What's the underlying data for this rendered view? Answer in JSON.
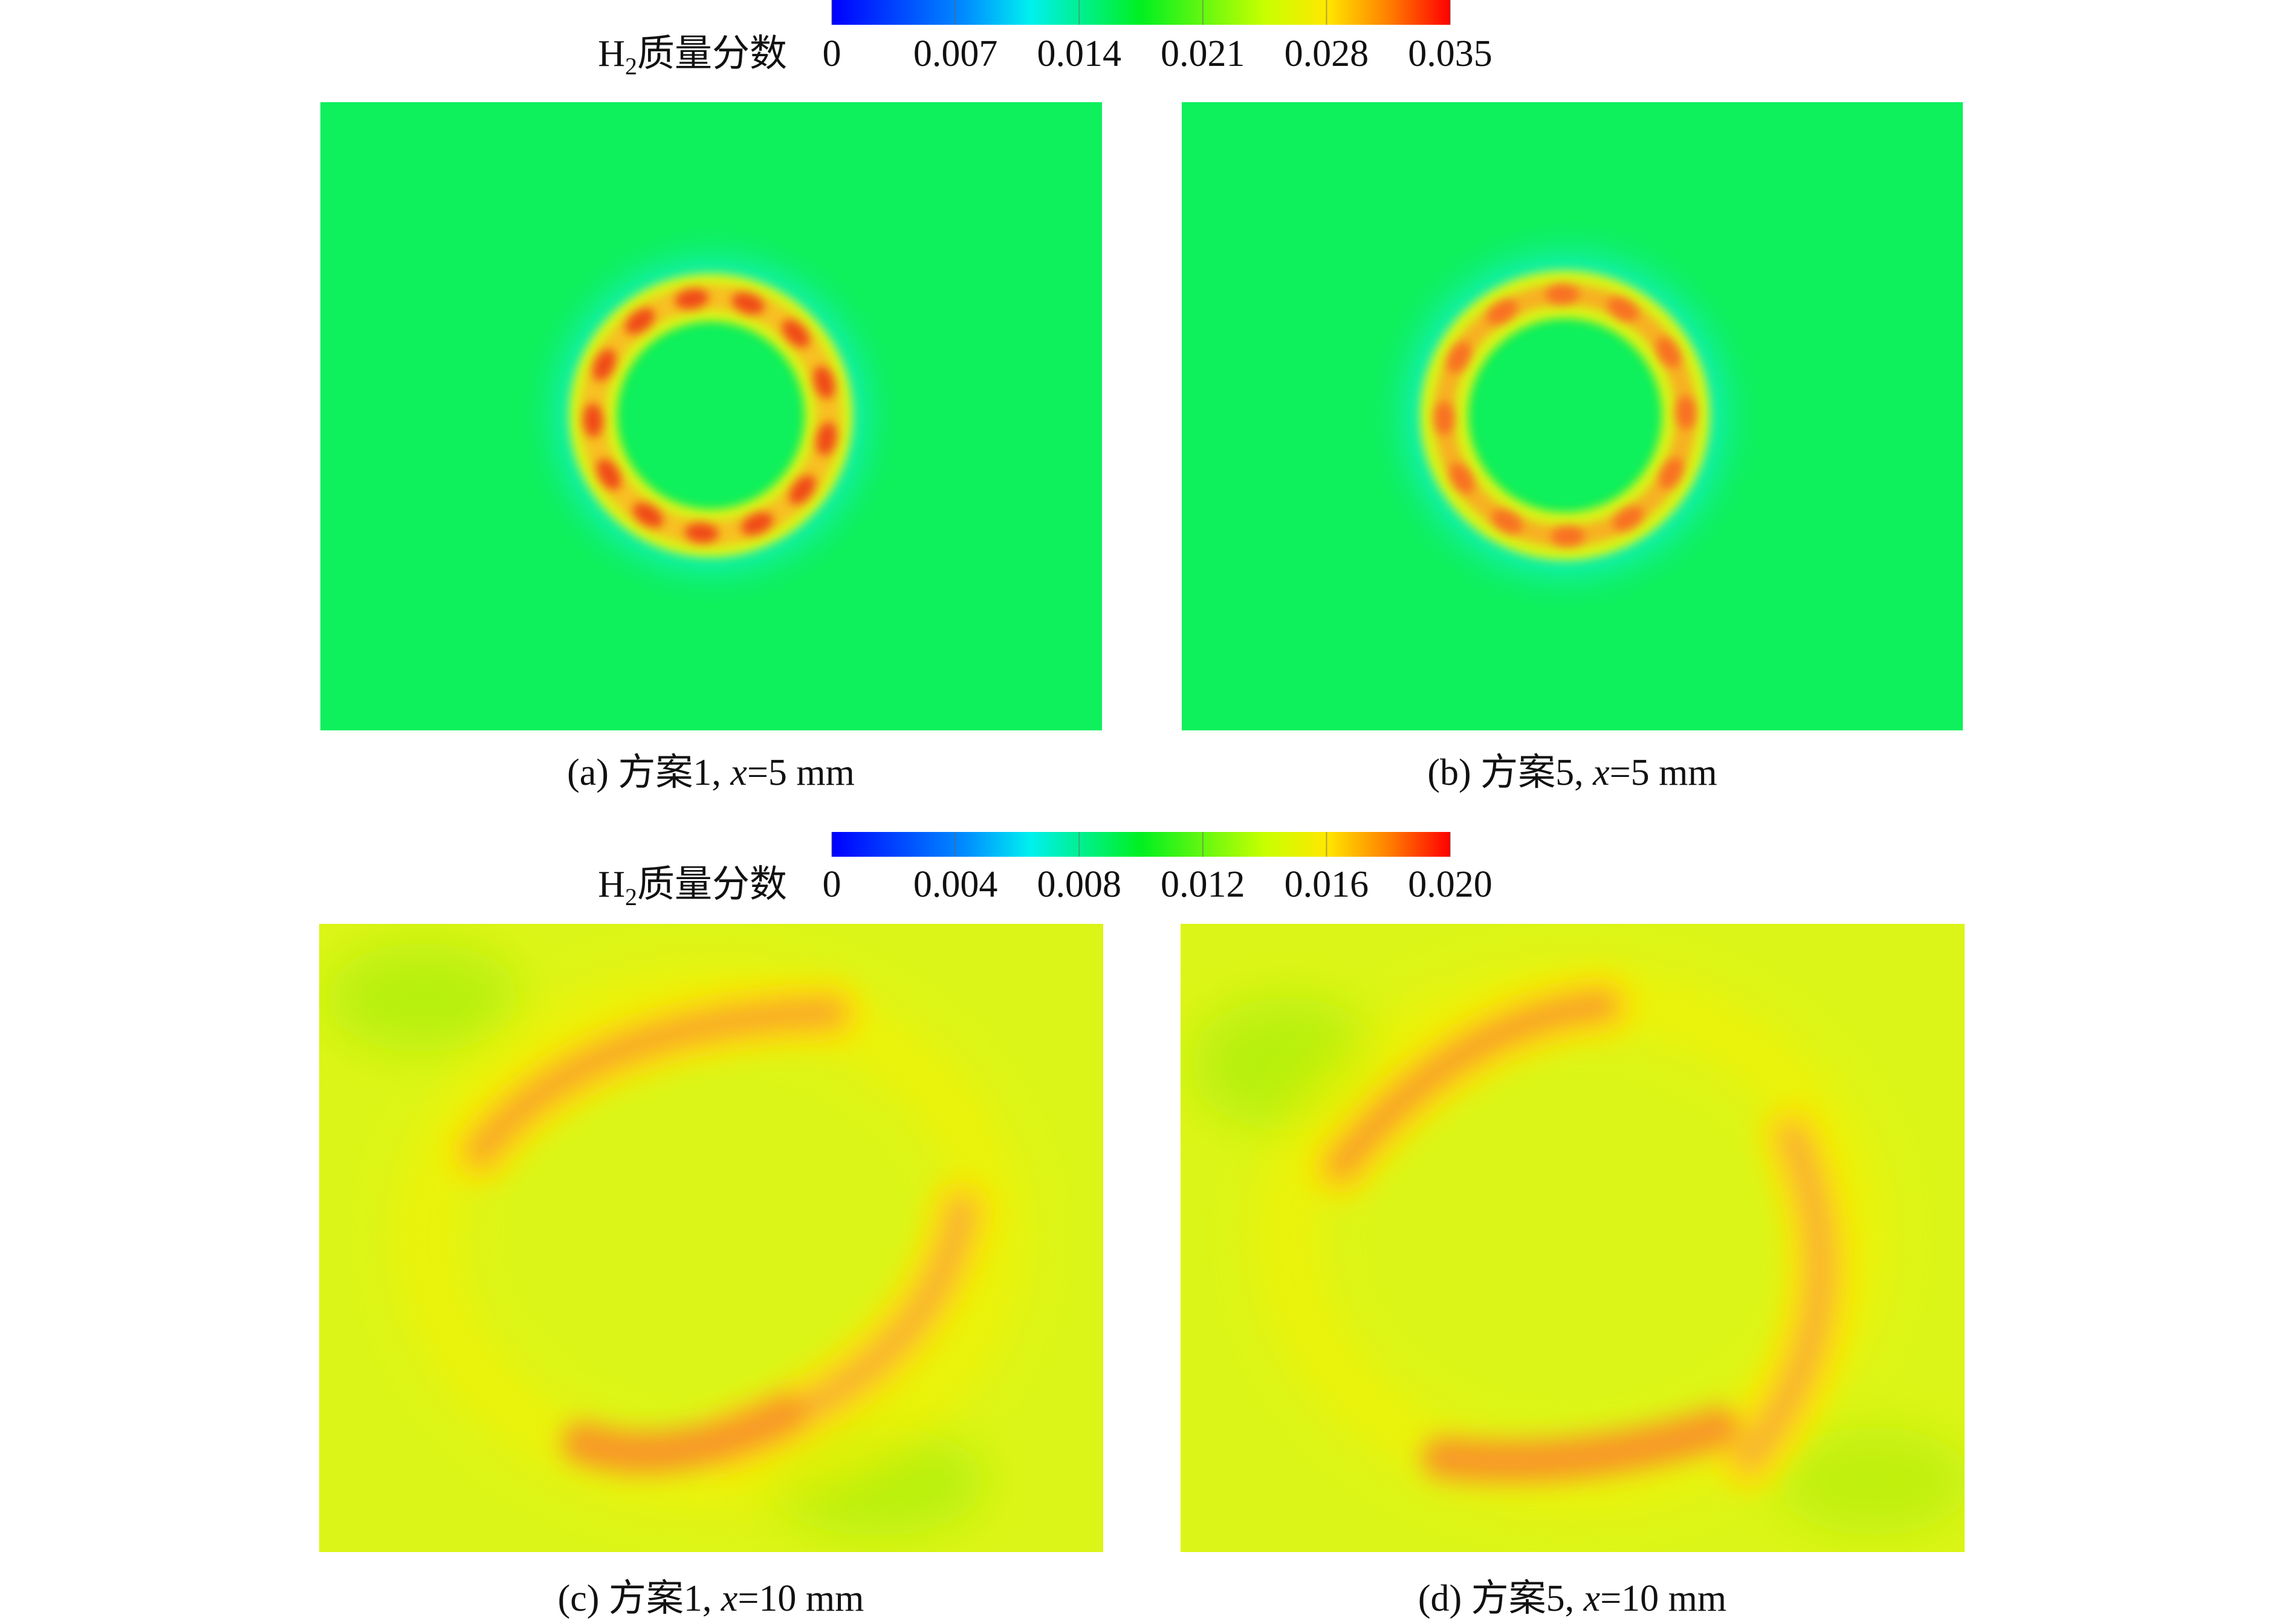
{
  "colorbars": [
    {
      "label": {
        "symbol": "H",
        "subscript": "2",
        "text": "质量分数"
      },
      "lim": [
        0,
        0.035
      ],
      "ticks": [
        0,
        0.007,
        0.014,
        0.021,
        0.028,
        0.035
      ]
    },
    {
      "label": {
        "symbol": "H",
        "subscript": "2",
        "text": "质量分数"
      },
      "lim": [
        0,
        0.02
      ],
      "ticks": [
        0,
        0.004,
        0.008,
        0.012,
        0.016,
        {
          "value": 0.02,
          "label": "0.020"
        }
      ]
    }
  ],
  "panels": [
    {
      "caption": {
        "prefix": "(a) 方案1, ",
        "variable": "x",
        "suffix": "=5 mm"
      }
    },
    {
      "caption": {
        "prefix": "(b) 方案5, ",
        "variable": "x",
        "suffix": "=5 mm"
      }
    },
    {
      "caption": {
        "prefix": "(c) 方案1, ",
        "variable": "x",
        "suffix": "=10 mm"
      }
    },
    {
      "caption": {
        "prefix": "(d) 方案5, ",
        "variable": "x",
        "suffix": "=10 mm"
      }
    }
  ]
}
